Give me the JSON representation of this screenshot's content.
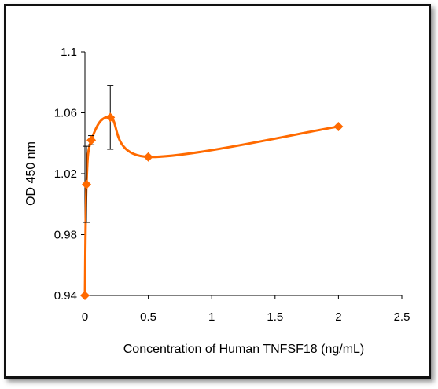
{
  "chart_data": {
    "type": "line",
    "title": "",
    "xlabel": "Concentration of Human TNFSF18 (ng/mL)",
    "ylabel": "OD 450 nm",
    "xlim": [
      0,
      2.5
    ],
    "ylim": [
      0.94,
      1.1
    ],
    "xticks": [
      "0",
      "0.5",
      "1",
      "1.5",
      "2",
      "2.5"
    ],
    "yticks": [
      "0.94",
      "0.98",
      "1.02",
      "1.06",
      "1.1"
    ],
    "grid": false,
    "legend": "none",
    "series": [
      {
        "color": "#ff6a00",
        "marker": "diamond",
        "smooth": true,
        "x": [
          0.0,
          0.0125,
          0.05,
          0.2,
          0.5,
          2.0
        ],
        "y": [
          0.94,
          1.013,
          1.042,
          1.057,
          1.031,
          1.051
        ],
        "error": [
          0.0,
          0.025,
          0.003,
          0.021,
          0.0,
          0.0
        ]
      }
    ]
  },
  "colors": {
    "series": "#ff6a00",
    "axis": "#000000",
    "frame": "#111111"
  }
}
